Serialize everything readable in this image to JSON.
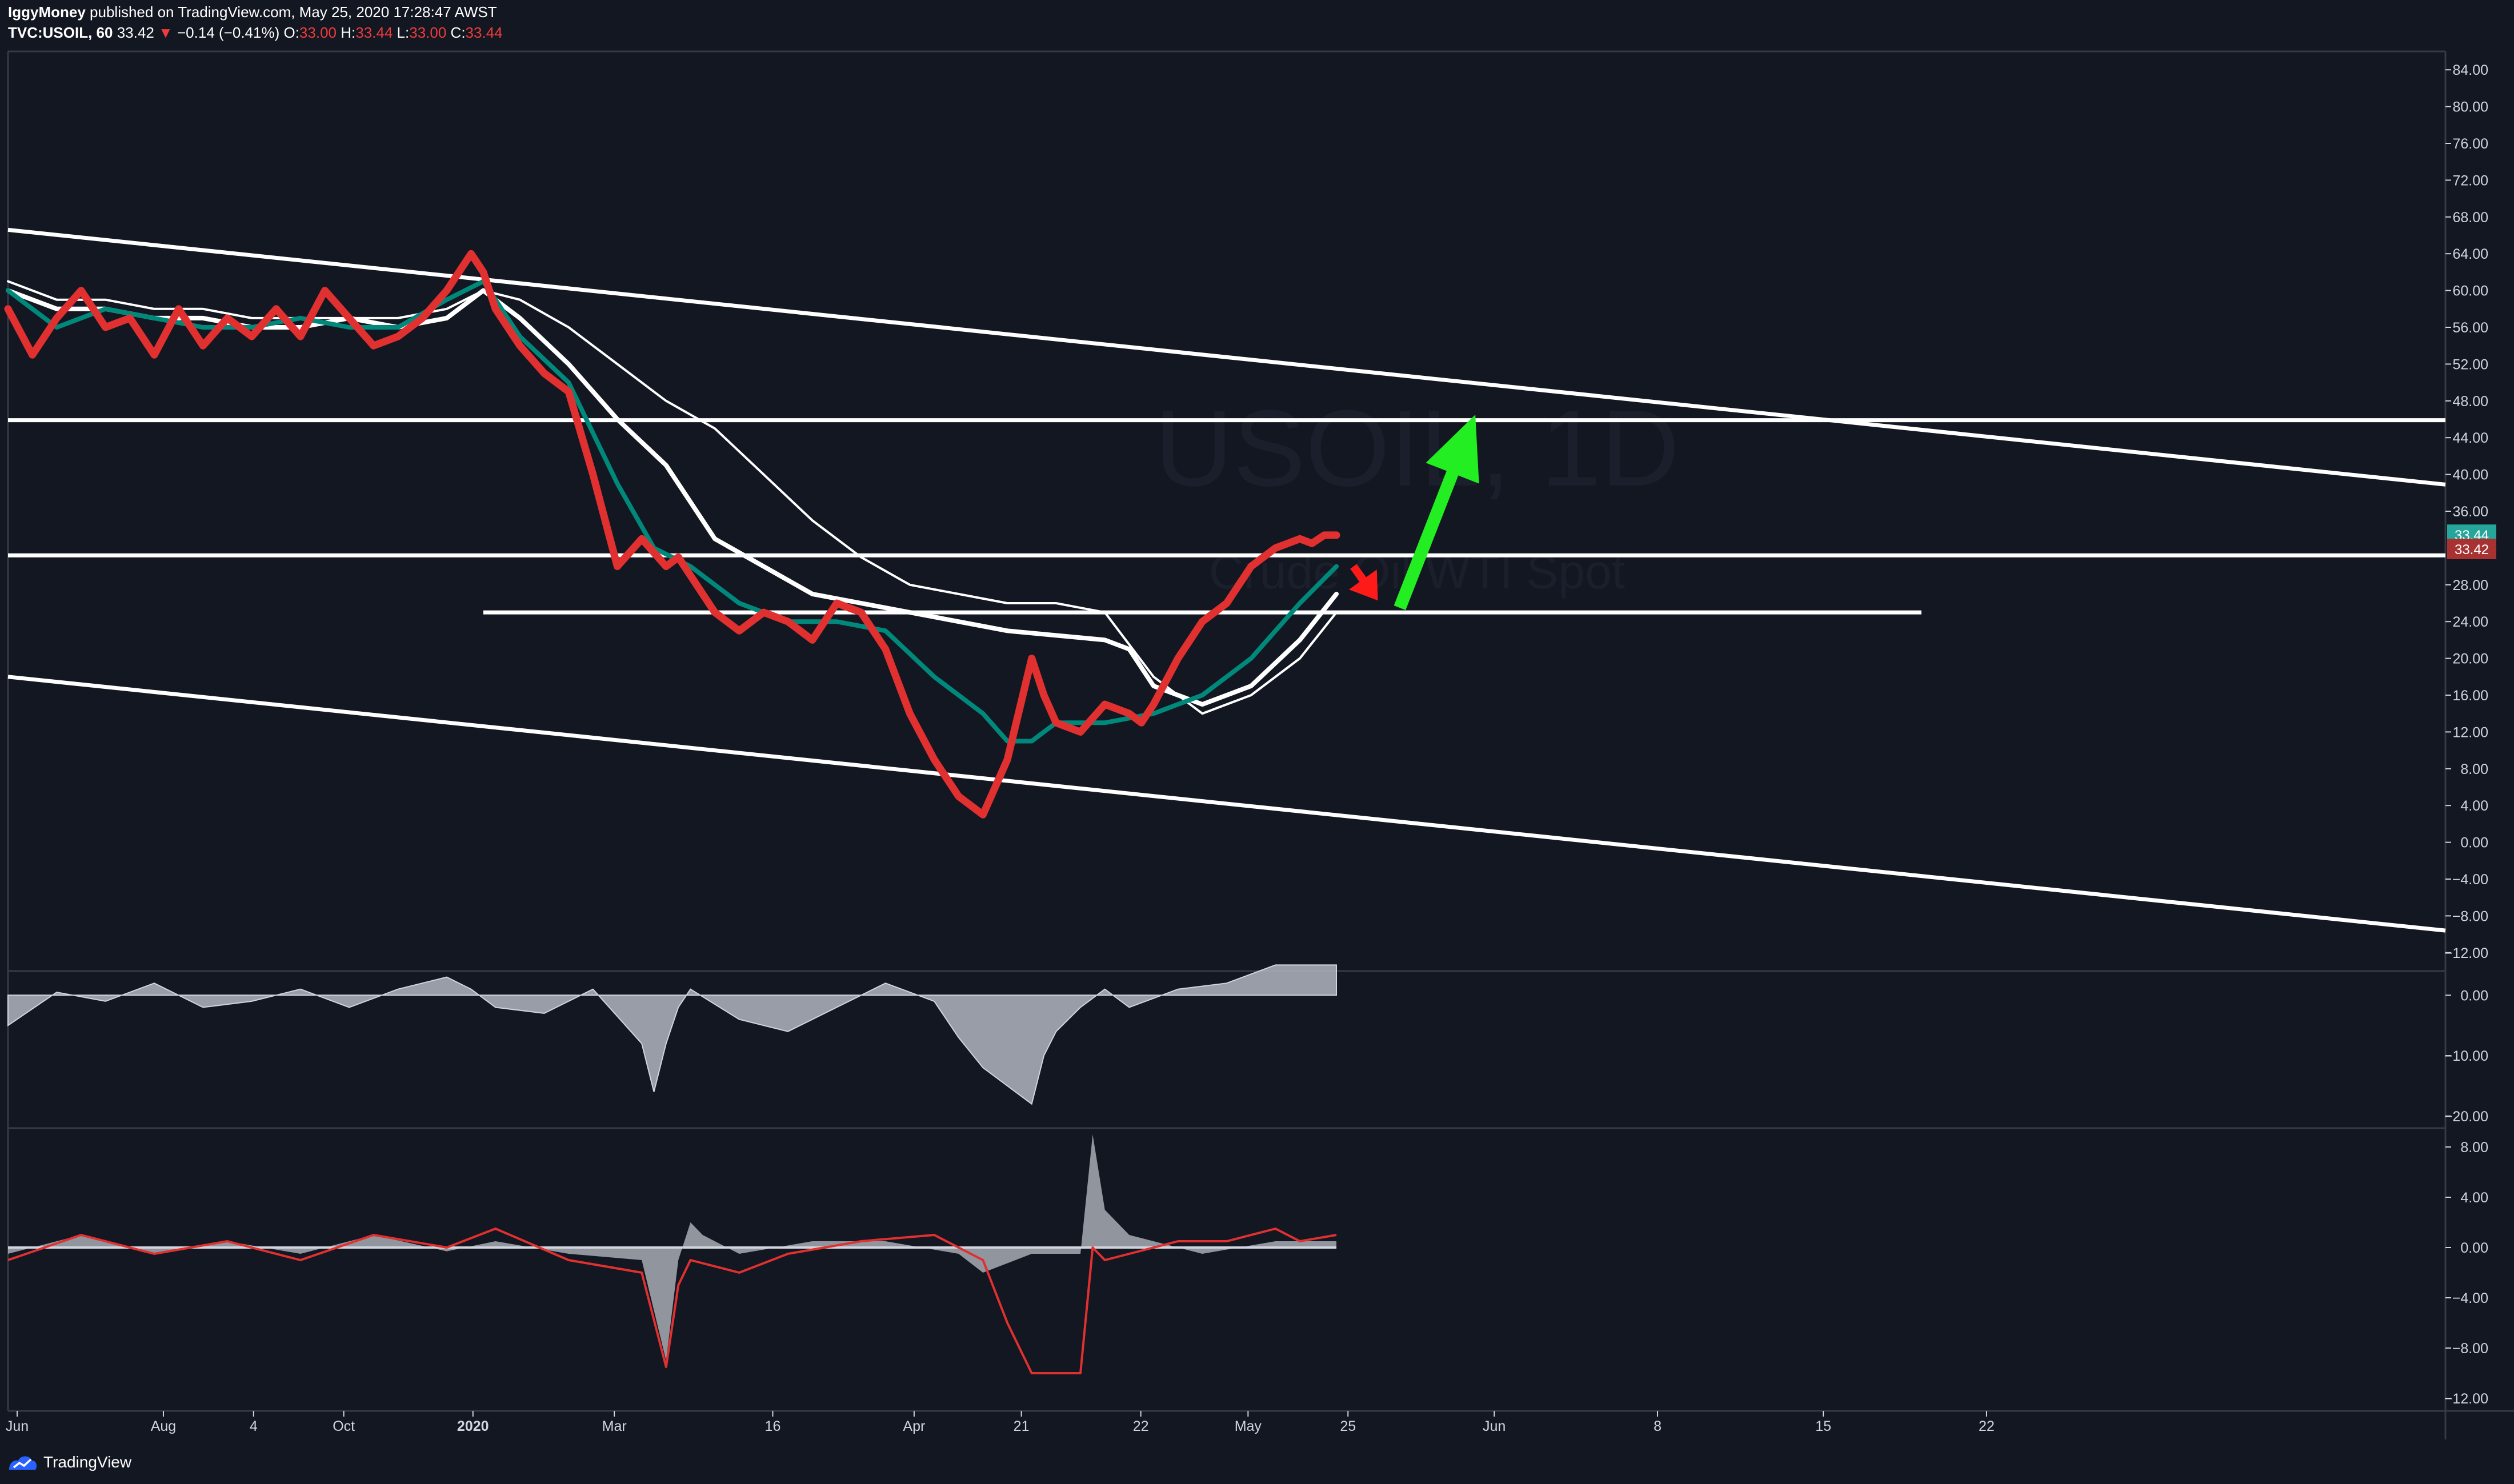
{
  "header": {
    "line1_author": "IggyMoney",
    "line1_rest": "published on TradingView.com, May 25, 2020 17:28:47 AWST",
    "symbol": "TVC:USOIL, 60",
    "last": "33.42",
    "change_arrow": "▼",
    "change": "−0.14 (−0.41%)",
    "o_label": "O:",
    "o_value": "33.00",
    "h_label": "H:",
    "h_value": "33.44",
    "l_label": "L:",
    "l_value": "33.00",
    "c_label": "C:",
    "c_value": "33.44"
  },
  "brand": {
    "name": "TradingView",
    "icon": "tradingview-logo-icon"
  },
  "watermark": {
    "symbol": "USOIL, 1D",
    "subtitle": "Crude Oil WTI Spot"
  },
  "colors": {
    "background": "#131722",
    "price_line": "#e0302f",
    "ma_fast": "#00897b",
    "ma_slow": "#ffffff",
    "trendline": "#ffffff",
    "up_arrow": "#22ee22",
    "down_arrow": "#ff1a1a",
    "badge_green": "#26a69a",
    "badge_red": "#a83232",
    "histogram": "#b2b5be",
    "axis_text": "#d1d4dc"
  },
  "chart_data": [
    {
      "type": "line",
      "pane": "price",
      "ylim": [
        -14,
        86
      ],
      "y_ticks": [
        "84.00",
        "80.00",
        "76.00",
        "72.00",
        "68.00",
        "64.00",
        "60.00",
        "56.00",
        "52.00",
        "48.00",
        "44.00",
        "40.00",
        "36.00",
        "28.00",
        "24.00",
        "20.00",
        "16.00",
        "12.00",
        "8.00",
        "4.00",
        "0.00",
        "−4.00",
        "−8.00",
        "−12.00"
      ],
      "y_tick_values": [
        84,
        80,
        76,
        72,
        68,
        64,
        60,
        56,
        52,
        48,
        44,
        40,
        36,
        28,
        24,
        20,
        16,
        12,
        8,
        4,
        0,
        -4,
        -8,
        -12
      ],
      "price_badges": [
        {
          "label": "33.44",
          "value": 33.44,
          "color": "badge_green"
        },
        {
          "label": "33.42",
          "value": 31.9,
          "color": "badge_red"
        }
      ],
      "x_ticks": [
        {
          "label": "Jun",
          "t": 0.0
        },
        {
          "label": "Aug",
          "t": 0.06
        },
        {
          "label": "4",
          "t": 0.097
        },
        {
          "label": "Oct",
          "t": 0.134
        },
        {
          "label": "2020",
          "t": 0.187
        },
        {
          "label": "Mar",
          "t": 0.245
        },
        {
          "label": "16",
          "t": 0.31
        },
        {
          "label": "Apr",
          "t": 0.368
        },
        {
          "label": "21",
          "t": 0.412
        },
        {
          "label": "22",
          "t": 0.461
        },
        {
          "label": "May",
          "t": 0.505
        },
        {
          "label": "25",
          "t": 0.546
        },
        {
          "label": "Jun",
          "t": 0.606
        },
        {
          "label": "8",
          "t": 0.673
        },
        {
          "label": "15",
          "t": 0.741
        },
        {
          "label": "22",
          "t": 0.808
        }
      ],
      "series": [
        {
          "role": "price",
          "x": [
            0,
            0.01,
            0.02,
            0.03,
            0.04,
            0.05,
            0.06,
            0.07,
            0.08,
            0.09,
            0.1,
            0.11,
            0.12,
            0.13,
            0.14,
            0.15,
            0.16,
            0.17,
            0.18,
            0.19,
            0.195,
            0.2,
            0.21,
            0.22,
            0.23,
            0.24,
            0.25,
            0.26,
            0.27,
            0.275,
            0.28,
            0.29,
            0.3,
            0.31,
            0.32,
            0.33,
            0.34,
            0.35,
            0.36,
            0.37,
            0.38,
            0.39,
            0.4,
            0.41,
            0.42,
            0.425,
            0.43,
            0.44,
            0.45,
            0.46,
            0.465,
            0.47,
            0.48,
            0.49,
            0.5,
            0.51,
            0.52,
            0.53,
            0.535,
            0.54,
            0.545
          ],
          "values": [
            58,
            53,
            57,
            60,
            56,
            57,
            53,
            58,
            54,
            57,
            55,
            58,
            55,
            60,
            57,
            54,
            55,
            57,
            60,
            64,
            62,
            58,
            54,
            51,
            49,
            40,
            30,
            33,
            30,
            31,
            29,
            25,
            23,
            25,
            24,
            22,
            26,
            25,
            21,
            14,
            9,
            5,
            3,
            9,
            20,
            16,
            13,
            12,
            15,
            14,
            13,
            15,
            20,
            24,
            26,
            30,
            32,
            33,
            32.5,
            33.4,
            33.4
          ]
        },
        {
          "role": "ma_fast",
          "x": [
            0,
            0.02,
            0.04,
            0.06,
            0.08,
            0.1,
            0.12,
            0.14,
            0.16,
            0.18,
            0.195,
            0.21,
            0.23,
            0.25,
            0.265,
            0.28,
            0.3,
            0.32,
            0.34,
            0.36,
            0.38,
            0.4,
            0.41,
            0.42,
            0.43,
            0.45,
            0.47,
            0.49,
            0.51,
            0.53,
            0.545
          ],
          "values": [
            60,
            56,
            58,
            57,
            56,
            56,
            57,
            56,
            56,
            59,
            61,
            55,
            50,
            39,
            32,
            30,
            26,
            24,
            24,
            23,
            18,
            14,
            11,
            11,
            13,
            13,
            14,
            16,
            20,
            26,
            30
          ]
        },
        {
          "role": "ma_slow",
          "x": [
            0,
            0.02,
            0.04,
            0.06,
            0.08,
            0.1,
            0.12,
            0.14,
            0.16,
            0.18,
            0.195,
            0.21,
            0.23,
            0.25,
            0.27,
            0.29,
            0.31,
            0.33,
            0.35,
            0.37,
            0.39,
            0.41,
            0.45,
            0.46,
            0.47,
            0.49,
            0.51,
            0.53,
            0.545
          ],
          "values": [
            60,
            58,
            58,
            57,
            57,
            56,
            56,
            57,
            56,
            57,
            60,
            57,
            52,
            46,
            41,
            33,
            30,
            27,
            26,
            25,
            24,
            23,
            22,
            21,
            17,
            15,
            17,
            22,
            27
          ]
        },
        {
          "role": "ma_slower",
          "x": [
            0,
            0.02,
            0.04,
            0.06,
            0.08,
            0.1,
            0.12,
            0.14,
            0.16,
            0.18,
            0.195,
            0.21,
            0.23,
            0.25,
            0.27,
            0.29,
            0.31,
            0.33,
            0.35,
            0.37,
            0.39,
            0.41,
            0.43,
            0.45,
            0.47,
            0.49,
            0.51,
            0.53,
            0.545
          ],
          "values": [
            61,
            59,
            59,
            58,
            58,
            57,
            57,
            57,
            57,
            58,
            60,
            59,
            56,
            52,
            48,
            45,
            40,
            35,
            31,
            28,
            27,
            26,
            26,
            25,
            18,
            14,
            16,
            20,
            25
          ]
        }
      ],
      "trendlines": [
        {
          "x": [
            0,
            1
          ],
          "values": [
            66.6,
            38.9
          ]
        },
        {
          "x": [
            0,
            1
          ],
          "values": [
            18,
            -9.6
          ]
        },
        {
          "x": [
            0,
            1
          ],
          "values": [
            45.9,
            45.9
          ]
        },
        {
          "x": [
            0,
            1
          ],
          "values": [
            31.2,
            31.2
          ]
        },
        {
          "x": [
            0.195,
            0.785
          ],
          "values": [
            25,
            25
          ]
        }
      ],
      "arrows": [
        {
          "color": "up_arrow",
          "from": [
            0.571,
            25.5
          ],
          "to": [
            0.602,
            46.5
          ]
        },
        {
          "color": "down_arrow",
          "from": [
            0.552,
            30
          ],
          "to": [
            0.562,
            26.3
          ]
        }
      ]
    },
    {
      "type": "bar",
      "pane": "oscillator_1",
      "ylim": [
        -22,
        4
      ],
      "y_ticks": [
        "0.00",
        "−10.00",
        "−20.00"
      ],
      "y_tick_values": [
        0,
        -10,
        -20
      ],
      "x": [
        0,
        0.02,
        0.04,
        0.06,
        0.08,
        0.1,
        0.12,
        0.14,
        0.16,
        0.18,
        0.19,
        0.2,
        0.22,
        0.24,
        0.26,
        0.265,
        0.27,
        0.275,
        0.28,
        0.3,
        0.32,
        0.34,
        0.36,
        0.38,
        0.39,
        0.4,
        0.41,
        0.42,
        0.425,
        0.43,
        0.44,
        0.45,
        0.46,
        0.48,
        0.5,
        0.52,
        0.545
      ],
      "values": [
        -5,
        0.5,
        -1,
        2,
        -2,
        -1,
        1,
        -2,
        1,
        3,
        1,
        -2,
        -3,
        1,
        -8,
        -16,
        -8,
        -2,
        1,
        -4,
        -6,
        -2,
        2,
        -1,
        -7,
        -12,
        -15,
        -18,
        -10,
        -6,
        -2,
        1,
        -2,
        1,
        2,
        5,
        5
      ]
    },
    {
      "type": "line",
      "pane": "oscillator_2",
      "ylim": [
        -13,
        9.5
      ],
      "y_ticks": [
        "8.00",
        "4.00",
        "0.00",
        "−4.00",
        "−8.00",
        "−12.00"
      ],
      "y_tick_values": [
        8,
        4,
        0,
        -4,
        -8,
        -12
      ],
      "series": [
        {
          "role": "histogram",
          "x": [
            0,
            0.03,
            0.06,
            0.09,
            0.12,
            0.15,
            0.18,
            0.2,
            0.23,
            0.26,
            0.27,
            0.275,
            0.28,
            0.285,
            0.3,
            0.33,
            0.36,
            0.39,
            0.4,
            0.42,
            0.44,
            0.445,
            0.45,
            0.46,
            0.47,
            0.49,
            0.52,
            0.545
          ],
          "values": [
            -0.5,
            1,
            -0.5,
            0.5,
            -0.5,
            1,
            -0.3,
            0.5,
            -0.5,
            -1,
            -9,
            -1,
            2,
            1,
            -0.5,
            0.5,
            0.5,
            -0.5,
            -2,
            -0.5,
            -0.5,
            9,
            3,
            1,
            0.5,
            -0.5,
            0.5,
            0.5
          ]
        },
        {
          "role": "signal",
          "x": [
            0,
            0.03,
            0.06,
            0.09,
            0.12,
            0.15,
            0.18,
            0.2,
            0.23,
            0.26,
            0.27,
            0.275,
            0.28,
            0.3,
            0.32,
            0.35,
            0.38,
            0.4,
            0.41,
            0.42,
            0.44,
            0.445,
            0.45,
            0.46,
            0.48,
            0.5,
            0.52,
            0.53,
            0.545
          ],
          "values": [
            -1,
            1,
            -0.5,
            0.5,
            -1,
            1,
            0,
            1.5,
            -1,
            -2,
            -9.5,
            -3,
            -1,
            -2,
            -0.5,
            0.5,
            1,
            -1,
            -6,
            -10,
            -10,
            0,
            -1,
            -0.5,
            0.5,
            0.5,
            1.5,
            0.5,
            1
          ]
        }
      ]
    }
  ]
}
